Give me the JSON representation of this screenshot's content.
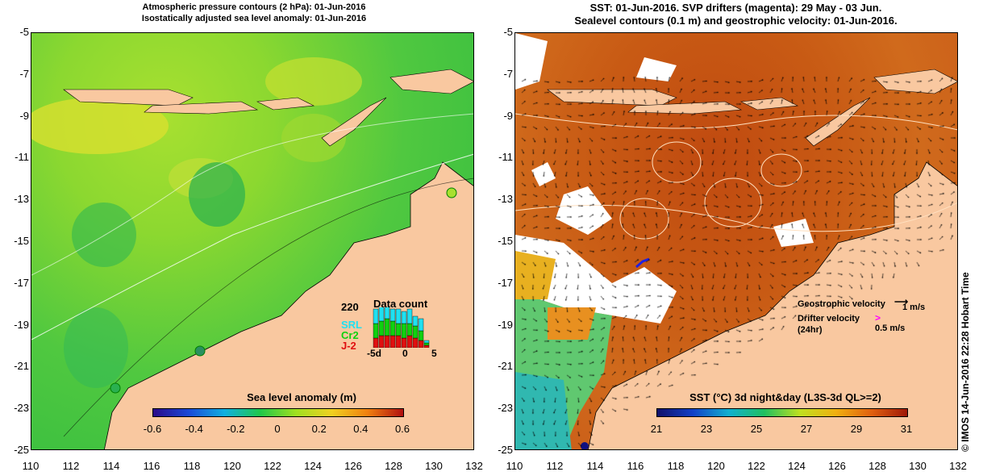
{
  "left_panel": {
    "title_line1": "Atmospheric pressure contours (2 hPa): 01-Jun-2016",
    "title_line2": "Isostatically adjusted sea level anomaly: 01-Jun-2016",
    "colorbar_title": "Sea level anomaly (m)",
    "colorbar_ticks": [
      "-0.6",
      "-0.4",
      "-0.2",
      "0",
      "0.2",
      "0.4",
      "0.6"
    ],
    "data_count": {
      "title": "Data count",
      "max_label": "220",
      "series": [
        {
          "name": "SRL",
          "color": "#20e0f0"
        },
        {
          "name": "Cr2",
          "color": "#10d010"
        },
        {
          "name": "J-2",
          "color": "#e01010"
        }
      ],
      "x_ticks": [
        "-5d",
        "0",
        "5"
      ],
      "bars": [
        {
          "day": -5,
          "srl": 0.3,
          "cr2": 0.3,
          "j2": 0.2
        },
        {
          "day": -4,
          "srl": 0.35,
          "cr2": 0.3,
          "j2": 0.25
        },
        {
          "day": -3,
          "srl": 0.3,
          "cr2": 0.35,
          "j2": 0.25
        },
        {
          "day": -2,
          "srl": 0.25,
          "cr2": 0.3,
          "j2": 0.25
        },
        {
          "day": -1,
          "srl": 0.3,
          "cr2": 0.25,
          "j2": 0.25
        },
        {
          "day": 0,
          "srl": 0.25,
          "cr2": 0.3,
          "j2": 0.2
        },
        {
          "day": 1,
          "srl": 0.3,
          "cr2": 0.25,
          "j2": 0.25
        },
        {
          "day": 2,
          "srl": 0.2,
          "cr2": 0.25,
          "j2": 0.2
        },
        {
          "day": 3,
          "srl": 0.25,
          "cr2": 0.2,
          "j2": 0.15
        },
        {
          "day": 4,
          "srl": 0.05,
          "cr2": 0.05,
          "j2": 0.05
        }
      ]
    }
  },
  "right_panel": {
    "title_line1": "SST: 01-Jun-2016. SVP drifters (magenta): 29 May - 03 Jun.",
    "title_line2": "Sealevel contours (0.1 m) and geostrophic velocity: 01-Jun-2016.",
    "colorbar_title": "SST (°C) 3d night&day (L3S-3d QL>=2)",
    "colorbar_ticks": [
      "21",
      "23",
      "25",
      "27",
      "29",
      "31"
    ],
    "legend": {
      "geostrophic_label": "Geostrophic velocity",
      "geostrophic_scale": "1 m/s",
      "drifter_label_line1": "Drifter velocity",
      "drifter_label_line2": "(24hr)",
      "drifter_scale": "0.5 m/s",
      "drifter_color": "#ff00ff"
    }
  },
  "axes": {
    "y_ticks": [
      "-5",
      "-7",
      "-9",
      "-11",
      "-13",
      "-15",
      "-17",
      "-19",
      "-21",
      "-23",
      "-25"
    ],
    "x_ticks": [
      "110",
      "112",
      "114",
      "116",
      "118",
      "120",
      "122",
      "124",
      "126",
      "128",
      "130",
      "132"
    ]
  },
  "colors": {
    "land": "#f9c8a0",
    "sla_scale": [
      "#2a0a8a",
      "#1a4ad8",
      "#10b0e0",
      "#20c84a",
      "#a0e020",
      "#f0d020",
      "#f08010",
      "#b01010"
    ],
    "sst_scale": [
      "#10106a",
      "#1040c8",
      "#10b0d0",
      "#20c060",
      "#c0e020",
      "#f0b010",
      "#e06010",
      "#a01808"
    ]
  },
  "credit": "© IMOS 14-Jun-2016 22:28 Hobart Time"
}
